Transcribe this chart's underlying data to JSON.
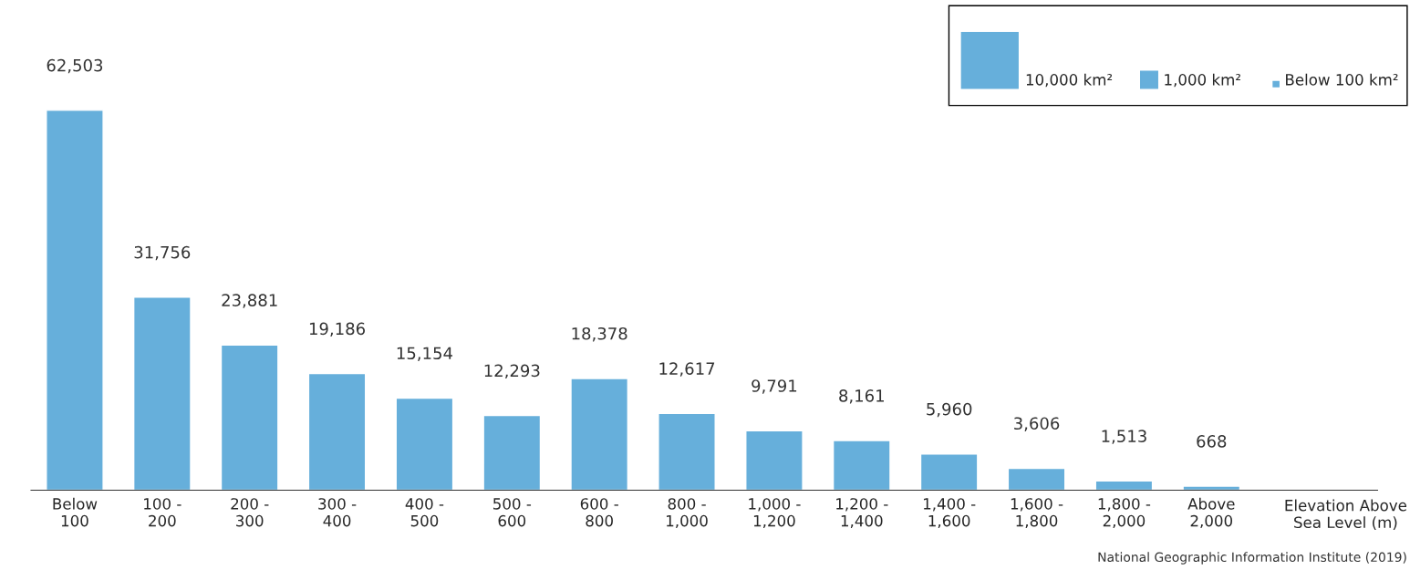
{
  "chart_data": {
    "type": "bar",
    "categories": [
      "Below\n100",
      "100 -\n200",
      "200 -\n300",
      "300 -\n400",
      "400 -\n500",
      "500 -\n600",
      "600 -\n800",
      "800 -\n1,000",
      "1,000 -\n1,200",
      "1,200 -\n1,400",
      "1,400 -\n1,600",
      "1,600 -\n1,800",
      "1,800 -\n2,000",
      "Above\n2,000"
    ],
    "values": [
      62503,
      31756,
      23881,
      19186,
      15154,
      12293,
      18378,
      12617,
      9791,
      8161,
      5960,
      3606,
      1513,
      668
    ],
    "color": "#66afdb",
    "xlabel": "Elevation Above\nSea Level (m)",
    "data_labels": true,
    "value_labels": [
      "62,503",
      "31,756",
      "23,881",
      "19,186",
      "15,154",
      "12,293",
      "18,378",
      "12,617",
      "9,791",
      "8,161",
      "5,960",
      "3,606",
      "1,513",
      "668"
    ],
    "annotations": [
      "10,000 km²",
      "1,000 km²",
      "Below 100 km²",
      "National Geographic Information Institute (2019)"
    ],
    "grid": false
  }
}
